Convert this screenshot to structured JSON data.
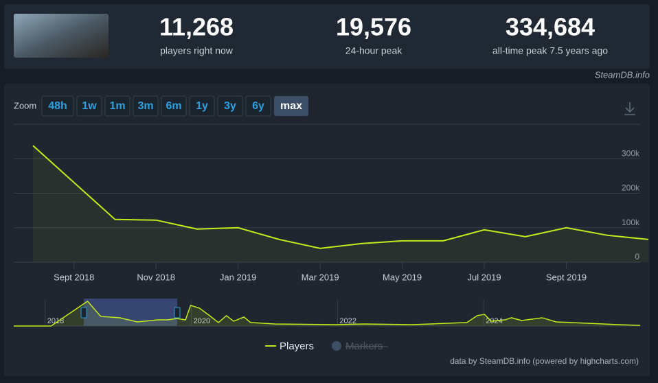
{
  "stats": [
    {
      "value": "11,268",
      "label": "players right now"
    },
    {
      "value": "19,576",
      "label": "24-hour peak"
    },
    {
      "value": "334,684",
      "label": "all-time peak 7.5 years ago"
    }
  ],
  "brand": "SteamDB.info",
  "zoom": {
    "label": "Zoom",
    "buttons": [
      "48h",
      "1w",
      "1m",
      "3m",
      "6m",
      "1y",
      "3y",
      "6y",
      "max"
    ],
    "active": 8
  },
  "credits": "data by SteamDB.info (powered by highcharts.com)",
  "chart_data": [
    {
      "type": "line",
      "color": "#c4ec1c",
      "grid": true,
      "x": [
        "2018-08",
        "2018-10",
        "2018-11",
        "2018-12",
        "2019-01",
        "2019-02",
        "2019-03",
        "2019-04",
        "2019-05",
        "2019-06",
        "2019-07",
        "2019-08",
        "2019-09",
        "2019-10",
        "2019-11"
      ],
      "xlim": [
        "2018-08",
        "2019-11"
      ],
      "xticks": [
        {
          "value": "2018-09",
          "label": "Sept 2018"
        },
        {
          "value": "2018-11",
          "label": "Nov 2018"
        },
        {
          "value": "2019-01",
          "label": "Jan 2019"
        },
        {
          "value": "2019-03",
          "label": "Mar 2019"
        },
        {
          "value": "2019-05",
          "label": "May 2019"
        },
        {
          "value": "2019-07",
          "label": "Jul 2019"
        },
        {
          "value": "2019-09",
          "label": "Sept 2019"
        }
      ],
      "ylim": [
        0,
        400000
      ],
      "yticks": [
        0,
        {
          "value": 100000,
          "label": "100k"
        },
        {
          "value": 200000,
          "label": "200k"
        },
        {
          "value": 300000,
          "label": "300k"
        }
      ],
      "series": [
        {
          "name": "Players",
          "color": "#c4ec1c",
          "values": [
            338000,
            124000,
            122000,
            96000,
            100000,
            66000,
            40000,
            54000,
            62000,
            62000,
            94000,
            74000,
            100000,
            78000,
            66000
          ]
        }
      ],
      "hidden_series": [
        {
          "name": "Markers"
        }
      ]
    },
    {
      "type": "area",
      "color": "#c4ec1c",
      "x": [
        2017.57,
        2018.08,
        2018.58,
        2018.76,
        2019.02,
        2019.26,
        2019.54,
        2019.68,
        2019.8,
        2019.92,
        2019.99,
        2020.11,
        2020.25,
        2020.37,
        2020.48,
        2020.58,
        2020.72,
        2020.81,
        2021.14,
        2021.98,
        2022.36,
        2023.02,
        2023.77,
        2023.91,
        2024.01,
        2024.1,
        2024.29,
        2024.38,
        2024.52,
        2024.8,
        2024.99,
        2025.18,
        2025.84,
        2026.14
      ],
      "values": [
        0,
        0,
        342000,
        133000,
        114000,
        57000,
        85000,
        85000,
        104000,
        85000,
        285000,
        247000,
        143000,
        48000,
        143000,
        67000,
        124000,
        48000,
        29000,
        19000,
        29000,
        19000,
        48000,
        143000,
        162000,
        67000,
        85000,
        114000,
        76000,
        114000,
        57000,
        48000,
        19000,
        10000
      ],
      "xlim": [
        2017.57,
        2026.14
      ],
      "xticks": [
        2018,
        2020,
        2022,
        2024
      ],
      "ylim": [
        0,
        360000
      ]
    }
  ]
}
